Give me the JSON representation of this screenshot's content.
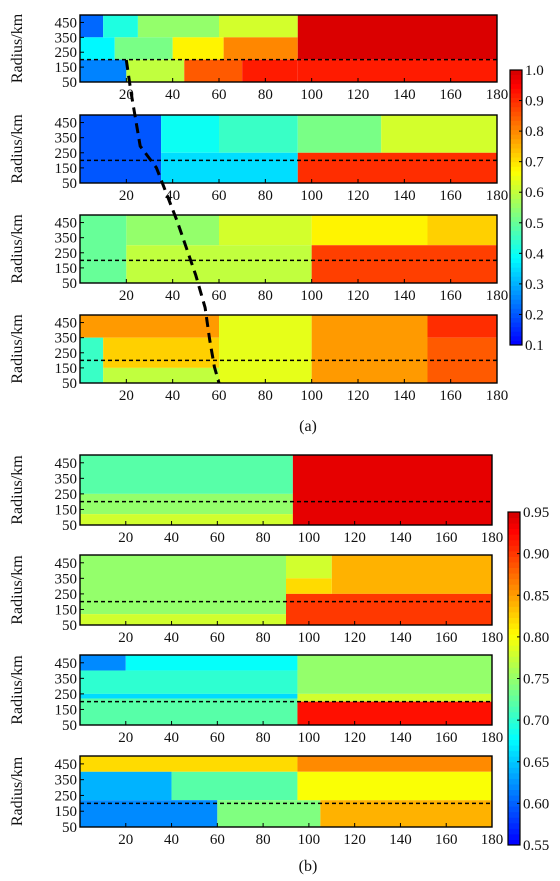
{
  "chart_data": [
    {
      "figure_label": "(a)",
      "colorbar": {
        "min": 0.1,
        "max": 1.0,
        "ticks": [
          "0.1",
          "0.2",
          "0.3",
          "0.4",
          "0.5",
          "0.6",
          "0.7",
          "0.8",
          "0.9",
          "1.0"
        ]
      },
      "dividing_curve": {
        "x": [
          20,
          22,
          26,
          33,
          42,
          50,
          54,
          56,
          58,
          60
        ],
        "panel_y": [
          1,
          1.3,
          1.8,
          2.0,
          2.5,
          3.0,
          3.3,
          3.6,
          3.85,
          4
        ]
      },
      "panels": [
        {
          "type": "heatmap",
          "ylabel": "Radius/km",
          "xlim": [
            0,
            180
          ],
          "ylim": [
            50,
            500
          ],
          "xticks": [
            "20",
            "40",
            "60",
            "80",
            "100",
            "120",
            "140",
            "160",
            "180"
          ],
          "yticks": [
            "50",
            "150",
            "250",
            "350",
            "450"
          ],
          "dashed_line_y": 200,
          "cells": [
            {
              "x0": 0,
              "x1": 10,
              "y0": 350,
              "y1": 500,
              "v": 0.22
            },
            {
              "x0": 10,
              "x1": 25,
              "y0": 350,
              "y1": 500,
              "v": 0.42
            },
            {
              "x0": 25,
              "x1": 60,
              "y0": 350,
              "y1": 500,
              "v": 0.55
            },
            {
              "x0": 60,
              "x1": 94,
              "y0": 350,
              "y1": 500,
              "v": 0.62
            },
            {
              "x0": 0,
              "x1": 15,
              "y0": 200,
              "y1": 350,
              "v": 0.38
            },
            {
              "x0": 15,
              "x1": 40,
              "y0": 200,
              "y1": 350,
              "v": 0.52
            },
            {
              "x0": 40,
              "x1": 62,
              "y0": 200,
              "y1": 350,
              "v": 0.68
            },
            {
              "x0": 62,
              "x1": 94,
              "y0": 200,
              "y1": 350,
              "v": 0.8
            },
            {
              "x0": 0,
              "x1": 20,
              "y0": 50,
              "y1": 200,
              "v": 0.25
            },
            {
              "x0": 20,
              "x1": 45,
              "y0": 50,
              "y1": 200,
              "v": 0.6
            },
            {
              "x0": 45,
              "x1": 70,
              "y0": 50,
              "y1": 200,
              "v": 0.85
            },
            {
              "x0": 70,
              "x1": 94,
              "y0": 50,
              "y1": 200,
              "v": 0.92
            },
            {
              "x0": 94,
              "x1": 180,
              "y0": 200,
              "y1": 500,
              "v": 0.99
            },
            {
              "x0": 94,
              "x1": 180,
              "y0": 50,
              "y1": 200,
              "v": 0.92
            }
          ]
        },
        {
          "type": "heatmap",
          "ylabel": "Radius/km",
          "xlim": [
            0,
            180
          ],
          "ylim": [
            50,
            500
          ],
          "xticks": [
            "20",
            "40",
            "60",
            "80",
            "100",
            "120",
            "140",
            "160",
            "180"
          ],
          "yticks": [
            "50",
            "150",
            "250",
            "350",
            "450"
          ],
          "dashed_line_y": 200,
          "cells": [
            {
              "x0": 0,
              "x1": 35,
              "y0": 50,
              "y1": 500,
              "v": 0.2
            },
            {
              "x0": 35,
              "x1": 60,
              "y0": 250,
              "y1": 500,
              "v": 0.4
            },
            {
              "x0": 60,
              "x1": 94,
              "y0": 250,
              "y1": 500,
              "v": 0.45
            },
            {
              "x0": 35,
              "x1": 94,
              "y0": 50,
              "y1": 250,
              "v": 0.35
            },
            {
              "x0": 94,
              "x1": 130,
              "y0": 250,
              "y1": 500,
              "v": 0.52
            },
            {
              "x0": 130,
              "x1": 180,
              "y0": 250,
              "y1": 500,
              "v": 0.62
            },
            {
              "x0": 94,
              "x1": 180,
              "y0": 50,
              "y1": 250,
              "v": 0.9
            }
          ]
        },
        {
          "type": "heatmap",
          "ylabel": "Radius/km",
          "xlim": [
            0,
            180
          ],
          "ylim": [
            50,
            500
          ],
          "xticks": [
            "20",
            "40",
            "60",
            "80",
            "100",
            "120",
            "140",
            "160",
            "180"
          ],
          "yticks": [
            "50",
            "150",
            "250",
            "350",
            "450"
          ],
          "dashed_line_y": 200,
          "cells": [
            {
              "x0": 0,
              "x1": 20,
              "y0": 50,
              "y1": 500,
              "v": 0.5
            },
            {
              "x0": 20,
              "x1": 60,
              "y0": 300,
              "y1": 500,
              "v": 0.55
            },
            {
              "x0": 60,
              "x1": 100,
              "y0": 300,
              "y1": 500,
              "v": 0.62
            },
            {
              "x0": 20,
              "x1": 100,
              "y0": 50,
              "y1": 300,
              "v": 0.6
            },
            {
              "x0": 100,
              "x1": 150,
              "y0": 300,
              "y1": 500,
              "v": 0.68
            },
            {
              "x0": 150,
              "x1": 180,
              "y0": 300,
              "y1": 500,
              "v": 0.72
            },
            {
              "x0": 100,
              "x1": 180,
              "y0": 50,
              "y1": 300,
              "v": 0.88
            }
          ]
        },
        {
          "type": "heatmap",
          "ylabel": "Radius/km",
          "xlim": [
            0,
            180
          ],
          "ylim": [
            50,
            500
          ],
          "xticks": [
            "20",
            "40",
            "60",
            "80",
            "100",
            "120",
            "140",
            "160",
            "180"
          ],
          "yticks": [
            "50",
            "150",
            "250",
            "350",
            "450"
          ],
          "dashed_line_y": 200,
          "cells": [
            {
              "x0": 0,
              "x1": 60,
              "y0": 350,
              "y1": 500,
              "v": 0.78
            },
            {
              "x0": 0,
              "x1": 10,
              "y0": 50,
              "y1": 350,
              "v": 0.45
            },
            {
              "x0": 10,
              "x1": 60,
              "y0": 150,
              "y1": 350,
              "v": 0.72
            },
            {
              "x0": 10,
              "x1": 60,
              "y0": 50,
              "y1": 150,
              "v": 0.6
            },
            {
              "x0": 60,
              "x1": 100,
              "y0": 50,
              "y1": 500,
              "v": 0.64
            },
            {
              "x0": 100,
              "x1": 150,
              "y0": 50,
              "y1": 500,
              "v": 0.78
            },
            {
              "x0": 150,
              "x1": 180,
              "y0": 350,
              "y1": 500,
              "v": 0.9
            },
            {
              "x0": 150,
              "x1": 180,
              "y0": 50,
              "y1": 350,
              "v": 0.85
            }
          ]
        }
      ]
    },
    {
      "figure_label": "(b)",
      "colorbar": {
        "min": 0.55,
        "max": 0.95,
        "ticks": [
          "0.55",
          "0.60",
          "0.65",
          "0.70",
          "0.75",
          "0.80",
          "0.85",
          "0.90",
          "0.95"
        ]
      },
      "panels": [
        {
          "type": "heatmap",
          "ylabel": "Radius/km",
          "xlim": [
            0,
            180
          ],
          "ylim": [
            50,
            500
          ],
          "xticks": [
            "20",
            "40",
            "60",
            "80",
            "100",
            "120",
            "140",
            "160",
            "180"
          ],
          "yticks": [
            "50",
            "150",
            "250",
            "350",
            "450"
          ],
          "dashed_line_y": 200,
          "cells": [
            {
              "x0": 0,
              "x1": 93,
              "y0": 250,
              "y1": 500,
              "v": 0.72
            },
            {
              "x0": 0,
              "x1": 93,
              "y0": 120,
              "y1": 250,
              "v": 0.75
            },
            {
              "x0": 0,
              "x1": 93,
              "y0": 50,
              "y1": 120,
              "v": 0.78
            },
            {
              "x0": 93,
              "x1": 180,
              "y0": 50,
              "y1": 500,
              "v": 0.94
            }
          ]
        },
        {
          "type": "heatmap",
          "ylabel": "Radius/km",
          "xlim": [
            0,
            180
          ],
          "ylim": [
            50,
            500
          ],
          "xticks": [
            "20",
            "40",
            "60",
            "80",
            "100",
            "120",
            "140",
            "160",
            "180"
          ],
          "yticks": [
            "50",
            "150",
            "250",
            "350",
            "450"
          ],
          "dashed_line_y": 200,
          "cells": [
            {
              "x0": 0,
              "x1": 90,
              "y0": 120,
              "y1": 500,
              "v": 0.75
            },
            {
              "x0": 0,
              "x1": 90,
              "y0": 50,
              "y1": 120,
              "v": 0.78
            },
            {
              "x0": 90,
              "x1": 110,
              "y0": 350,
              "y1": 500,
              "v": 0.78
            },
            {
              "x0": 110,
              "x1": 180,
              "y0": 250,
              "y1": 500,
              "v": 0.84
            },
            {
              "x0": 90,
              "x1": 110,
              "y0": 250,
              "y1": 350,
              "v": 0.82
            },
            {
              "x0": 90,
              "x1": 180,
              "y0": 50,
              "y1": 250,
              "v": 0.9
            }
          ]
        },
        {
          "type": "heatmap",
          "ylabel": "Radius/km",
          "xlim": [
            0,
            180
          ],
          "ylim": [
            50,
            500
          ],
          "xticks": [
            "20",
            "40",
            "60",
            "80",
            "100",
            "120",
            "140",
            "160",
            "180"
          ],
          "yticks": [
            "50",
            "150",
            "250",
            "350",
            "450"
          ],
          "dashed_line_y": 200,
          "cells": [
            {
              "x0": 0,
              "x1": 20,
              "y0": 400,
              "y1": 500,
              "v": 0.62
            },
            {
              "x0": 20,
              "x1": 95,
              "y0": 400,
              "y1": 500,
              "v": 0.68
            },
            {
              "x0": 0,
              "x1": 95,
              "y0": 250,
              "y1": 400,
              "v": 0.7
            },
            {
              "x0": 0,
              "x1": 95,
              "y0": 220,
              "y1": 250,
              "v": 0.66
            },
            {
              "x0": 0,
              "x1": 95,
              "y0": 50,
              "y1": 220,
              "v": 0.72
            },
            {
              "x0": 95,
              "x1": 180,
              "y0": 250,
              "y1": 500,
              "v": 0.75
            },
            {
              "x0": 95,
              "x1": 180,
              "y0": 200,
              "y1": 250,
              "v": 0.78
            },
            {
              "x0": 95,
              "x1": 180,
              "y0": 50,
              "y1": 200,
              "v": 0.92
            }
          ]
        },
        {
          "type": "heatmap",
          "ylabel": "Radius/km",
          "xlim": [
            0,
            180
          ],
          "ylim": [
            50,
            500
          ],
          "xticks": [
            "20",
            "40",
            "60",
            "80",
            "100",
            "120",
            "140",
            "160",
            "180"
          ],
          "yticks": [
            "50",
            "150",
            "250",
            "350",
            "450"
          ],
          "dashed_line_y": 200,
          "cells": [
            {
              "x0": 0,
              "x1": 95,
              "y0": 400,
              "y1": 500,
              "v": 0.82
            },
            {
              "x0": 95,
              "x1": 180,
              "y0": 400,
              "y1": 500,
              "v": 0.86
            },
            {
              "x0": 0,
              "x1": 40,
              "y0": 220,
              "y1": 400,
              "v": 0.64
            },
            {
              "x0": 40,
              "x1": 95,
              "y0": 220,
              "y1": 400,
              "v": 0.72
            },
            {
              "x0": 0,
              "x1": 60,
              "y0": 50,
              "y1": 220,
              "v": 0.62
            },
            {
              "x0": 60,
              "x1": 105,
              "y0": 50,
              "y1": 220,
              "v": 0.74
            },
            {
              "x0": 95,
              "x1": 180,
              "y0": 220,
              "y1": 400,
              "v": 0.8
            },
            {
              "x0": 105,
              "x1": 180,
              "y0": 50,
              "y1": 220,
              "v": 0.84
            }
          ]
        }
      ]
    }
  ]
}
